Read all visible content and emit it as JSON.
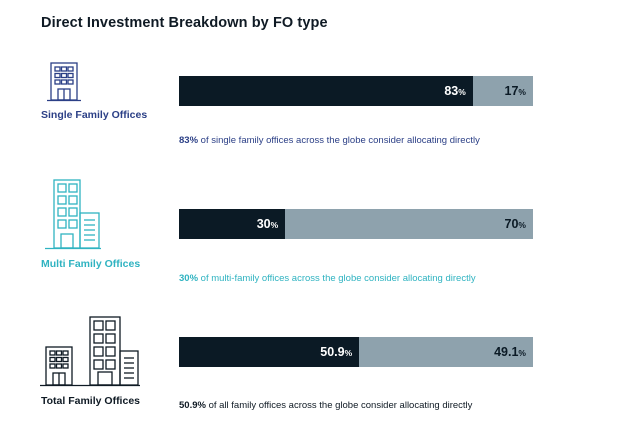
{
  "title": "Direct Investment Breakdown by FO type",
  "chart_data": {
    "type": "bar",
    "orientation": "horizontal-stacked",
    "title": "Direct Investment Breakdown by FO type",
    "unit": "%",
    "categories": [
      "Single Family Offices",
      "Multi Family Offices",
      "Total Family Offices"
    ],
    "series": [
      {
        "values": [
          83,
          30,
          50.9
        ],
        "color": "#0b1a25"
      },
      {
        "values": [
          17,
          70,
          49.1
        ],
        "color": "#8ea2ad"
      }
    ],
    "labels": [
      {
        "primary": "83",
        "secondary": "17"
      },
      {
        "primary": "30",
        "secondary": "70"
      },
      {
        "primary": "50.9",
        "secondary": "49.1"
      }
    ],
    "pct_symbol": "%",
    "xlim": [
      0,
      100
    ]
  },
  "rows": [
    {
      "label": "Single Family Offices",
      "color": "#2b3f86",
      "icon": "building-icon",
      "caption_highlight": "83%",
      "caption_text": " of single family offices across the globe consider allocating directly"
    },
    {
      "label": "Multi Family Offices",
      "color": "#2fb3c1",
      "icon": "buildings-icon",
      "caption_highlight": "30%",
      "caption_text": " of multi-family offices across the globe consider allocating directly"
    },
    {
      "label": "Total Family Offices",
      "color": "#0f1a24",
      "icon": "city-buildings-icon",
      "caption_highlight": "50.9%",
      "caption_text": " of all family offices across the globe consider allocating directly"
    }
  ]
}
